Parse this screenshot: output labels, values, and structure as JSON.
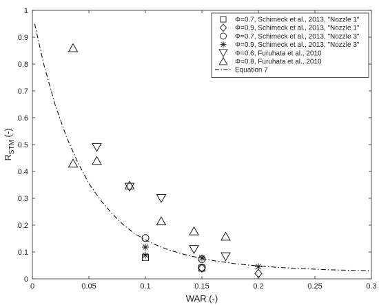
{
  "chart_data": {
    "type": "scatter",
    "xlabel": "WAR (-)",
    "ylabel_main": "R",
    "ylabel_sub": "STM",
    "ylabel_suffix": " (-)",
    "xlim": [
      0,
      0.3
    ],
    "ylim": [
      0,
      1
    ],
    "xticks": [
      0,
      0.05,
      0.1,
      0.15,
      0.2,
      0.25,
      0.3
    ],
    "xtick_labels": [
      "0",
      "0.05",
      "0.1",
      "0.15",
      "0.2",
      "0.25",
      "0.3"
    ],
    "yticks": [
      0,
      0.1,
      0.2,
      0.3,
      0.4,
      0.5,
      0.6,
      0.7,
      0.8,
      0.9,
      1
    ],
    "ytick_labels": [
      "0",
      "0.1",
      "0.2",
      "0.3",
      "0.4",
      "0.5",
      "0.6",
      "0.7",
      "0.8",
      "0.9",
      "1"
    ],
    "grid": false,
    "legend_position": "top-right",
    "series": [
      {
        "name": "Φ=0.7, Schimeck et al., 2013, \"Nozzle 1\"",
        "marker": "square",
        "points": [
          [
            0.1,
            0.08
          ],
          [
            0.15,
            0.04
          ]
        ]
      },
      {
        "name": "Φ=0.9, Schimeck et al., 2013, \"Nozzle 1\"",
        "marker": "diamond",
        "points": [
          [
            0.15,
            0.04
          ],
          [
            0.2,
            0.02
          ]
        ]
      },
      {
        "name": "Φ=0.7, Schimeck et al., 2013, \"Nozzle 3\"",
        "marker": "circle",
        "points": [
          [
            0.1,
            0.152
          ],
          [
            0.15,
            0.073
          ],
          [
            0.15,
            0.042
          ]
        ]
      },
      {
        "name": "Φ=0.9, Schimeck et al., 2013, \"Nozzle 3\"",
        "marker": "asterisk",
        "points": [
          [
            0.1,
            0.118
          ],
          [
            0.1,
            0.088
          ],
          [
            0.15,
            0.078
          ],
          [
            0.2,
            0.045
          ]
        ]
      },
      {
        "name": "Φ=0.6, Furuhata et al., 2010",
        "marker": "triangle-down",
        "points": [
          [
            0.057,
            0.49
          ],
          [
            0.086,
            0.342
          ],
          [
            0.114,
            0.3
          ],
          [
            0.143,
            0.11
          ],
          [
            0.171,
            0.083
          ]
        ]
      },
      {
        "name": "Φ=0.8, Furuhata et al., 2010",
        "marker": "triangle-up",
        "points": [
          [
            0.036,
            0.86
          ],
          [
            0.036,
            0.43
          ],
          [
            0.057,
            0.44
          ],
          [
            0.086,
            0.348
          ],
          [
            0.114,
            0.215
          ],
          [
            0.143,
            0.178
          ],
          [
            0.171,
            0.158
          ]
        ]
      },
      {
        "name": "Equation 7",
        "marker": "dashdot-line",
        "curve": {
          "x": [
            0.002,
            0.01,
            0.02,
            0.03,
            0.04,
            0.05,
            0.06,
            0.07,
            0.08,
            0.09,
            0.1,
            0.11,
            0.12,
            0.13,
            0.14,
            0.15,
            0.16,
            0.17,
            0.18,
            0.19,
            0.2,
            0.21,
            0.22,
            0.23,
            0.24,
            0.25,
            0.26,
            0.27,
            0.28,
            0.29,
            0.3
          ],
          "y": [
            0.95,
            0.8,
            0.65,
            0.53,
            0.435,
            0.355,
            0.295,
            0.245,
            0.203,
            0.17,
            0.145,
            0.125,
            0.109,
            0.096,
            0.085,
            0.076,
            0.068,
            0.062,
            0.056,
            0.052,
            0.048,
            0.045,
            0.042,
            0.04,
            0.038,
            0.036,
            0.034,
            0.033,
            0.032,
            0.031,
            0.03
          ]
        }
      }
    ]
  }
}
